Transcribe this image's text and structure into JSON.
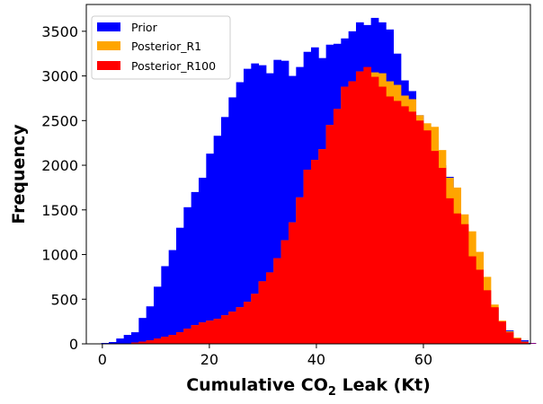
{
  "chart_data": {
    "type": "histogram",
    "xlabel": "Cumulative CO",
    "xlabel_sub": "2",
    "xlabel_suffix": " Leak (Kt)",
    "ylabel": "Frequency",
    "xlim": [
      -3,
      80
    ],
    "ylim": [
      0,
      3800
    ],
    "xticks": [
      0,
      20,
      40,
      60
    ],
    "yticks": [
      0,
      500,
      1000,
      1500,
      2000,
      2500,
      3000,
      3500
    ],
    "bin_width": 1.4,
    "bins_x0": -0.2,
    "legend_position": "upper-left",
    "series": [
      {
        "name": "Prior",
        "color": "#0000ff",
        "values": [
          10,
          20,
          60,
          100,
          130,
          290,
          420,
          640,
          870,
          1050,
          1300,
          1530,
          1700,
          1860,
          2130,
          2330,
          2540,
          2760,
          2930,
          3080,
          3140,
          3120,
          3030,
          3180,
          3170,
          3000,
          3100,
          3270,
          3320,
          3200,
          3350,
          3360,
          3420,
          3500,
          3600,
          3570,
          3650,
          3600,
          3520,
          3250,
          2950,
          2830,
          2560,
          2430,
          2270,
          2000,
          1870,
          1460,
          1300,
          790,
          700,
          490,
          400,
          230,
          150,
          70,
          40,
          10
        ]
      },
      {
        "name": "Posterior_R1",
        "color": "#ffa500",
        "values": [
          0,
          0,
          0,
          5,
          15,
          25,
          40,
          60,
          80,
          100,
          130,
          170,
          210,
          240,
          260,
          280,
          320,
          360,
          410,
          470,
          560,
          700,
          800,
          960,
          1160,
          1360,
          1640,
          1950,
          2060,
          2180,
          2450,
          2630,
          2880,
          2940,
          3050,
          3000,
          3040,
          3030,
          2940,
          2900,
          2780,
          2740,
          2560,
          2470,
          2430,
          2170,
          1860,
          1750,
          1450,
          1260,
          1030,
          750,
          440,
          260,
          140,
          70,
          25,
          5
        ]
      },
      {
        "name": "Posterior_R100",
        "color": "#ff0000",
        "values": [
          0,
          0,
          0,
          5,
          15,
          25,
          40,
          60,
          80,
          100,
          130,
          170,
          210,
          240,
          260,
          280,
          320,
          360,
          410,
          470,
          560,
          700,
          800,
          960,
          1160,
          1360,
          1640,
          1950,
          2060,
          2180,
          2450,
          2630,
          2880,
          2940,
          3050,
          3100,
          2990,
          2880,
          2770,
          2720,
          2660,
          2600,
          2500,
          2390,
          2160,
          1970,
          1630,
          1460,
          1340,
          980,
          830,
          600,
          410,
          250,
          130,
          60,
          20,
          5
        ]
      }
    ]
  }
}
